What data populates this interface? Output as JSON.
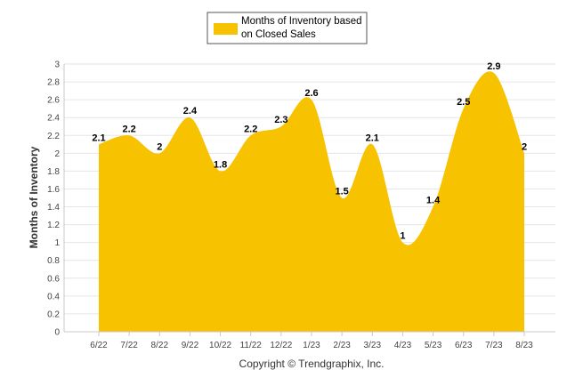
{
  "chart_data": {
    "type": "area",
    "categories": [
      "6/22",
      "7/22",
      "8/22",
      "9/22",
      "10/22",
      "11/22",
      "12/22",
      "1/23",
      "2/23",
      "3/23",
      "4/23",
      "5/23",
      "6/23",
      "7/23",
      "8/23"
    ],
    "series": [
      {
        "name": "Months of Inventory based on Closed Sales",
        "legend_lines": [
          "Months of Inventory based",
          "on Closed Sales"
        ],
        "values": [
          2.1,
          2.2,
          2.0,
          2.4,
          1.8,
          2.2,
          2.3,
          2.6,
          1.5,
          2.1,
          1.0,
          1.4,
          2.5,
          2.9,
          2.0
        ],
        "labels": [
          "2.1",
          "2.2",
          "2",
          "2.4",
          "1.8",
          "2.2",
          "2.3",
          "2.6",
          "1.5",
          "2.1",
          "1",
          "1.4",
          "2.5",
          "2.9",
          "2"
        ],
        "color": "#F7C200"
      }
    ],
    "ylabel": "Months of Inventory",
    "ylim": [
      0,
      3
    ],
    "yticks": [
      "0",
      "0.2",
      "0.4",
      "0.6",
      "0.8",
      "1",
      "1.2",
      "1.4",
      "1.6",
      "1.8",
      "2",
      "2.2",
      "2.4",
      "2.6",
      "2.8",
      "3"
    ],
    "grid": true,
    "legend_position": "top-center"
  },
  "footer": {
    "copyright": "Copyright © Trendgraphix, Inc."
  }
}
